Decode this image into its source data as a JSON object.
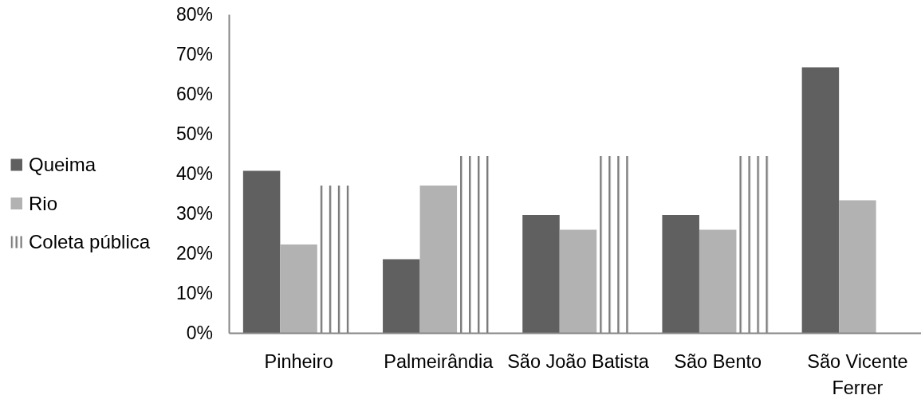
{
  "chart_data": {
    "type": "bar",
    "categories": [
      "Pinheiro",
      "Palmeirândia",
      "São João Batista",
      "São Bento",
      "São Vicente Ferrer"
    ],
    "series": [
      {
        "name": "Queima",
        "color": "#606060",
        "values": [
          40.7,
          18.5,
          29.6,
          29.6,
          66.7
        ]
      },
      {
        "name": "Rio",
        "color": "#b2b2b2",
        "values": [
          22.2,
          37,
          25.9,
          25.9,
          33.3
        ]
      },
      {
        "name": "Coleta pública",
        "color": "#7a7a7a",
        "values": [
          37,
          44.4,
          44.4,
          44.4,
          null
        ]
      }
    ],
    "ylim": [
      0,
      80
    ],
    "yticks": [
      {
        "value": 0,
        "label": "0%"
      },
      {
        "value": 10,
        "label": "10%"
      },
      {
        "value": 20,
        "label": "20%"
      },
      {
        "value": 30,
        "label": "30%"
      },
      {
        "value": 40,
        "label": "40%"
      },
      {
        "value": 50,
        "label": "50%"
      },
      {
        "value": 60,
        "label": "60%"
      },
      {
        "value": 70,
        "label": "70%"
      },
      {
        "value": 80,
        "label": "80%"
      }
    ],
    "legend": "left"
  }
}
